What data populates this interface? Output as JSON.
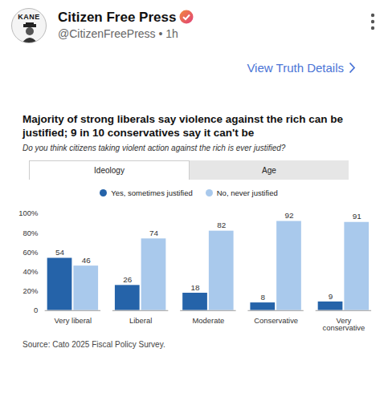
{
  "post": {
    "name": "Citizen Free Press",
    "handle_line": "@CitizenFreePress • 1h",
    "avatar_text": "KANE",
    "link": "View Truth Details"
  },
  "chart_data": {
    "type": "bar",
    "title": "Majority of strong liberals say violence against the rich can be justified; 9 in 10 conservatives say it can't be",
    "subtitle": "Do you think citizens taking violent action against the rich is ever justified?",
    "tabs": [
      "Ideology",
      "Age"
    ],
    "source": "Source: Cato 2025 Fiscal Policy Survey.",
    "categories": [
      "Very liberal",
      "Liberal",
      "Moderate",
      "Conservative",
      "Very conservative"
    ],
    "series": [
      {
        "name": "Yes, sometimes justified",
        "color": "#2563a9",
        "values": [
          54,
          26,
          18,
          8,
          9
        ]
      },
      {
        "name": "No, never justified",
        "color": "#a9c9ec",
        "values": [
          46,
          74,
          82,
          92,
          91
        ]
      }
    ],
    "ylim": [
      0,
      100
    ],
    "yticks": [
      0,
      {
        "value": 20,
        "label": "20%"
      },
      {
        "value": 40,
        "label": "40%"
      },
      {
        "value": 60,
        "label": "60%"
      },
      {
        "value": 80,
        "label": "80%"
      },
      {
        "value": 100,
        "label": "100%"
      }
    ],
    "grid": false,
    "legend": "top",
    "data_labels": true
  }
}
